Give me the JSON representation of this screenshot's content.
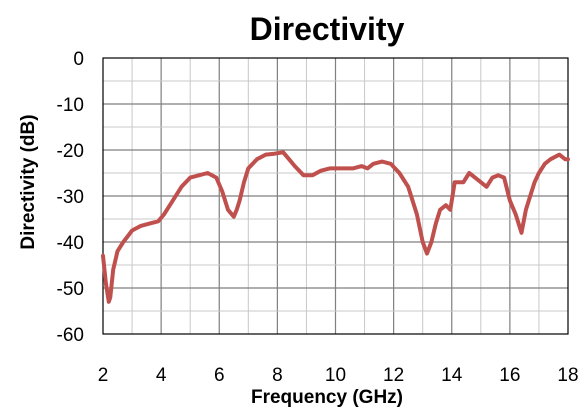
{
  "chart_data": {
    "type": "line",
    "title": "Directivity",
    "xlabel": "Frequency (GHz)",
    "ylabel": "Directivity (dB)",
    "xlim": [
      2,
      18
    ],
    "ylim": [
      -60,
      0
    ],
    "xticks": [
      2,
      4,
      6,
      8,
      10,
      12,
      14,
      16,
      18
    ],
    "yticks": [
      0,
      -10,
      -20,
      -30,
      -40,
      -50,
      -60
    ],
    "xtick_labels": [
      "2",
      "4",
      "6",
      "8",
      "10",
      "12",
      "14",
      "16",
      "18"
    ],
    "ytick_labels": [
      "0",
      "-10",
      "-20",
      "-30",
      "-40",
      "-50",
      "-60"
    ],
    "minor_x_step": 1,
    "grid": true,
    "legend": "none",
    "line_color": "#c0504d",
    "series": [
      {
        "x": [
          2.0,
          2.1,
          2.2,
          2.25,
          2.35,
          2.5,
          2.7,
          3.0,
          3.3,
          3.6,
          3.9,
          4.1,
          4.4,
          4.7,
          5.0,
          5.3,
          5.6,
          5.9,
          6.1,
          6.3,
          6.5,
          6.6,
          6.7,
          6.85,
          7.0,
          7.3,
          7.6,
          7.9,
          8.2,
          8.4,
          8.6,
          8.9,
          9.2,
          9.5,
          9.8,
          10.2,
          10.6,
          10.9,
          11.1,
          11.3,
          11.6,
          11.9,
          12.2,
          12.5,
          12.8,
          13.0,
          13.15,
          13.3,
          13.45,
          13.6,
          13.8,
          13.95,
          14.1,
          14.2,
          14.4,
          14.6,
          14.8,
          15.0,
          15.2,
          15.4,
          15.6,
          15.8,
          16.0,
          16.2,
          16.4,
          16.55,
          16.7,
          16.85,
          17.0,
          17.2,
          17.4,
          17.7,
          17.9,
          18.0
        ],
        "y": [
          -43,
          -49,
          -53,
          -52,
          -46,
          -42,
          -40,
          -37.5,
          -36.5,
          -36,
          -35.5,
          -34,
          -31,
          -28,
          -26,
          -25.5,
          -25,
          -26,
          -29,
          -33,
          -34.5,
          -33,
          -31,
          -27,
          -24,
          -22,
          -21,
          -20.8,
          -20.5,
          -22,
          -23.5,
          -25.5,
          -25.5,
          -24.5,
          -24,
          -24,
          -24,
          -23.5,
          -24,
          -23,
          -22.5,
          -23,
          -25,
          -28,
          -34,
          -40,
          -42.5,
          -40,
          -36,
          -33,
          -32,
          -33,
          -27,
          -27,
          -27,
          -25,
          -26,
          -27,
          -28,
          -26,
          -25.5,
          -26,
          -31,
          -34,
          -38,
          -33,
          -30,
          -27,
          -25,
          -23,
          -22,
          -21,
          -22,
          -22
        ]
      }
    ]
  }
}
